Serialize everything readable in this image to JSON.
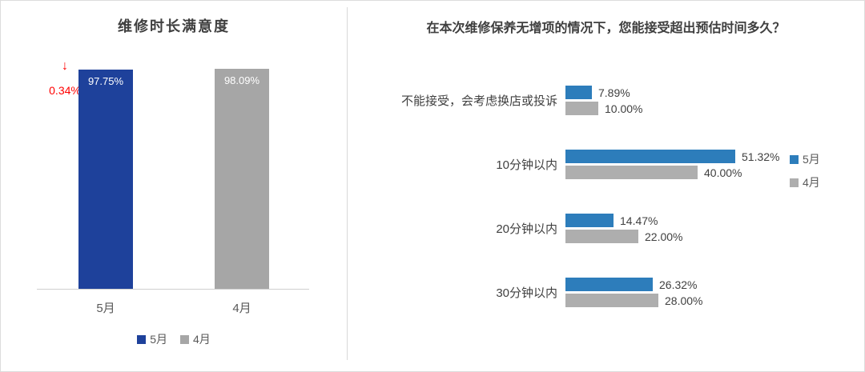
{
  "chart_data": [
    {
      "type": "bar",
      "orientation": "vertical",
      "title": "维修时长满意度",
      "categories": [
        "5月",
        "4月"
      ],
      "values": [
        97.75,
        98.09
      ],
      "value_labels": [
        "97.75%",
        "98.09%"
      ],
      "bar_colors": [
        "#1e419b",
        "#a6a6a6"
      ],
      "ylim": [
        0,
        100
      ],
      "delta_annotation": {
        "label": "0.34%",
        "direction": "down",
        "color": "#ff0000"
      },
      "legend": [
        {
          "label": "5月",
          "color": "#1e419b"
        },
        {
          "label": "4月",
          "color": "#a6a6a6"
        }
      ]
    },
    {
      "type": "bar",
      "orientation": "horizontal",
      "title": "在本次维修保养无增项的情况下，您能接受超出预估时间多久？",
      "categories": [
        "不能接受，会考虑换店或投诉",
        "10分钟以内",
        "20分钟以内",
        "30分钟以内"
      ],
      "series": [
        {
          "name": "5月",
          "color": "#2d7dbb",
          "values": [
            7.89,
            51.32,
            14.47,
            26.32
          ],
          "value_labels": [
            "7.89%",
            "51.32%",
            "14.47%",
            "26.32%"
          ]
        },
        {
          "name": "4月",
          "color": "#aeaeae",
          "values": [
            10.0,
            40.0,
            22.0,
            28.0
          ],
          "value_labels": [
            "10.00%",
            "40.00%",
            "22.00%",
            "28.00%"
          ]
        }
      ],
      "xlim": [
        0,
        55
      ],
      "legend": [
        {
          "label": "5月",
          "color": "#2d7dbb"
        },
        {
          "label": "4月",
          "color": "#aeaeae"
        }
      ]
    }
  ]
}
